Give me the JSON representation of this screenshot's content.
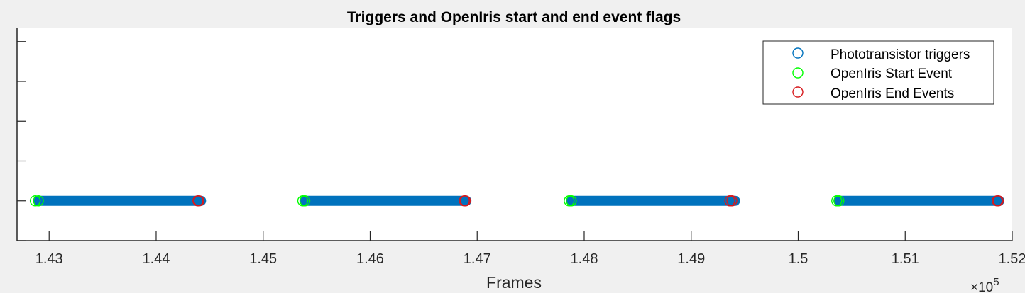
{
  "chart_data": {
    "type": "scatter",
    "title": "Triggers and OpenIris start and end event flags",
    "xlabel": "Frames",
    "ylabel": "",
    "x_exponent_label": "×10",
    "x_exponent_power": "5",
    "x_scale_factor": 100000,
    "xlim": [
      142700,
      152000
    ],
    "ylim": [
      0,
      1.6
    ],
    "x_ticks": [
      143000,
      144000,
      145000,
      146000,
      147000,
      148000,
      149000,
      150000,
      151000,
      152000
    ],
    "x_tick_labels": [
      "1.43",
      "1.44",
      "1.45",
      "1.46",
      "1.47",
      "1.48",
      "1.49",
      "1.5",
      "1.51",
      "1.52"
    ],
    "y_ticks": [
      0,
      0.3,
      0.6,
      0.9,
      1.2,
      1.5
    ],
    "y_tick_labels": [
      "",
      "",
      "",
      "",
      "",
      ""
    ],
    "grid": false,
    "legend_position": "top-right",
    "marker": "open-circle",
    "series": [
      {
        "name": "Phototransistor triggers",
        "color": "#0072BD",
        "y": 0.3,
        "dense_ranges": [
          [
            142900,
            144420
          ],
          [
            145390,
            146900
          ],
          [
            147880,
            149410
          ],
          [
            150380,
            151880
          ]
        ]
      },
      {
        "name": "OpenIris Start Event",
        "color": "#00FF00",
        "points": [
          [
            142870,
            0.3
          ],
          [
            142900,
            0.3
          ],
          [
            145370,
            0.3
          ],
          [
            145390,
            0.3
          ],
          [
            147860,
            0.3
          ],
          [
            147880,
            0.3
          ],
          [
            150360,
            0.3
          ],
          [
            150380,
            0.3
          ]
        ]
      },
      {
        "name": "OpenIris End Events",
        "color": "#D7191C",
        "points": [
          [
            144390,
            0.3
          ],
          [
            144400,
            0.3
          ],
          [
            146880,
            0.3
          ],
          [
            146890,
            0.3
          ],
          [
            149360,
            0.3
          ],
          [
            149380,
            0.3
          ],
          [
            151860,
            0.3
          ],
          [
            151870,
            0.3
          ]
        ]
      }
    ]
  }
}
